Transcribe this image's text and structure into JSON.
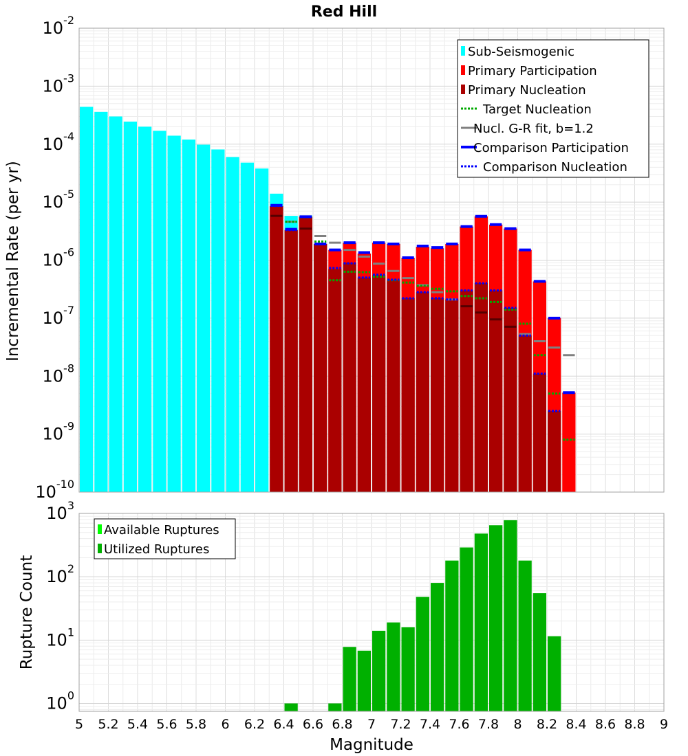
{
  "chart_data": [
    {
      "type": "bar",
      "title": "Red Hill",
      "ylabel": "Incremental Rate (per yr)",
      "xlabel": "",
      "xlim": [
        5,
        9
      ],
      "ylim": [
        1e-10,
        0.01
      ],
      "y_scale": "log",
      "bin_width": 0.1,
      "y_tick_exponents": [
        "-10",
        "-9",
        "-8",
        "-7",
        "-6",
        "-5",
        "-4",
        "-3",
        "-2"
      ],
      "legend_position": "top-right",
      "legend": [
        {
          "label": "Sub-Seismogenic",
          "color": "#00ffff",
          "style": "box"
        },
        {
          "label": "Primary Participation",
          "color": "#ff0000",
          "style": "box"
        },
        {
          "label": "Primary Nucleation",
          "color": "#aa0000",
          "style": "box"
        },
        {
          "label": "Target Nucleation",
          "color": "#00aa00",
          "style": "dotted"
        },
        {
          "label": "Nucl. G-R fit, b=1.2",
          "color": "#808080",
          "style": "solid"
        },
        {
          "label": "Comparison Participation",
          "color": "#0000ff",
          "style": "thick"
        },
        {
          "label": "Comparison Nucleation",
          "color": "#0000ff",
          "style": "dotted"
        }
      ],
      "series": [
        {
          "name": "Sub-Seismogenic",
          "x": [
            5.05,
            5.15,
            5.25,
            5.35,
            5.45,
            5.55,
            5.65,
            5.75,
            5.85,
            5.95,
            6.05,
            6.15,
            6.25,
            6.35,
            6.45,
            6.55
          ],
          "values": [
            0.00044,
            0.00036,
            0.0003,
            0.000245,
            0.0002,
            0.00017,
            0.00014,
            0.00012,
            9.8e-05,
            8.1e-05,
            6e-05,
            4.8e-05,
            3.8e-05,
            1.4e-05,
            5.8e-06,
            5.9e-06
          ]
        },
        {
          "name": "Primary Participation",
          "x": [
            6.35,
            6.45,
            6.55,
            6.65,
            6.75,
            6.85,
            6.95,
            7.05,
            7.15,
            7.25,
            7.35,
            7.45,
            7.55,
            7.65,
            7.75,
            7.85,
            7.95,
            8.05,
            8.15,
            8.25,
            8.35
          ],
          "values": [
            8.5e-06,
            3.3e-06,
            5.6e-06,
            1.9e-06,
            1.5e-06,
            2e-06,
            1.3e-06,
            2e-06,
            1.9e-06,
            1.1e-06,
            1.7e-06,
            1.6e-06,
            1.9e-06,
            3.8e-06,
            5.7e-06,
            4.1e-06,
            3.5e-06,
            1.5e-06,
            4.3e-07,
            1e-07,
            5.2e-09
          ]
        },
        {
          "name": "Primary Nucleation",
          "x": [
            6.35,
            6.45,
            6.55,
            6.65,
            6.75,
            6.85,
            6.95,
            7.05,
            7.15,
            7.25,
            7.35,
            7.45,
            7.55,
            7.65,
            7.75,
            7.85,
            7.95,
            8.05,
            8.15,
            8.25
          ],
          "values": [
            8.5e-06,
            3.3e-06,
            5.6e-06,
            1.9e-06,
            7e-07,
            9e-07,
            5e-07,
            5.5e-07,
            4.5e-07,
            2.2e-07,
            2.8e-07,
            2.2e-07,
            2.1e-07,
            3e-07,
            4e-07,
            3e-07,
            1.5e-07,
            5e-08,
            1.1e-08,
            2.5e-09
          ]
        },
        {
          "name": "Target Nucleation",
          "x": [
            6.45,
            6.55,
            6.65,
            6.75,
            6.85,
            6.95,
            7.05,
            7.15,
            7.25,
            7.35,
            7.45,
            7.55,
            7.65,
            7.75,
            7.85,
            7.95,
            8.05,
            8.15,
            8.25,
            8.35
          ],
          "values": [
            4.6e-06,
            5.5e-06,
            2.1e-06,
            4.5e-07,
            6.3e-07,
            6.2e-07,
            5.2e-07,
            4.5e-07,
            4.1e-07,
            3.6e-07,
            3.2e-07,
            2.9e-07,
            2.4e-07,
            2.2e-07,
            1.9e-07,
            1.4e-07,
            8e-08,
            2.3e-08,
            5e-09,
            8e-10
          ]
        },
        {
          "name": "Nucl. G-R fit, b=1.2",
          "x": [
            6.35,
            6.45,
            6.55,
            6.65,
            6.75,
            6.85,
            6.95,
            7.05,
            7.15,
            7.25,
            7.35,
            7.45,
            7.55,
            7.65,
            7.75,
            7.85,
            7.95,
            8.05,
            8.15,
            8.25,
            8.35
          ],
          "values": [
            5.8e-06,
            4.6e-06,
            3.5e-06,
            2.6e-06,
            2e-06,
            1.5e-06,
            1.15e-06,
            8.7e-07,
            6.5e-07,
            4.9e-07,
            3.7e-07,
            2.8e-07,
            2.1e-07,
            1.6e-07,
            1.25e-07,
            9.5e-08,
            7.1e-08,
            5.3e-08,
            4e-08,
            3.1e-08,
            2.3e-08
          ]
        },
        {
          "name": "Comparison Participation",
          "x": [
            6.35,
            6.45,
            6.55,
            6.65,
            6.75,
            6.85,
            6.95,
            7.05,
            7.15,
            7.25,
            7.35,
            7.45,
            7.55,
            7.65,
            7.75,
            7.85,
            7.95,
            8.05,
            8.15,
            8.25,
            8.35
          ],
          "values": [
            8.8e-06,
            3.4e-06,
            5.6e-06,
            1.9e-06,
            1.5e-06,
            2e-06,
            1.35e-06,
            2e-06,
            1.9e-06,
            1.1e-06,
            1.75e-06,
            1.65e-06,
            1.9e-06,
            3.8e-06,
            5.7e-06,
            4.1e-06,
            3.5e-06,
            1.5e-06,
            4.3e-07,
            1e-07,
            5.2e-09
          ]
        },
        {
          "name": "Comparison Nucleation",
          "x": [
            6.35,
            6.45,
            6.55,
            6.65,
            6.75,
            6.85,
            6.95,
            7.05,
            7.15,
            7.25,
            7.35,
            7.45,
            7.55,
            7.65,
            7.75,
            7.85,
            7.95,
            8.05,
            8.15,
            8.25
          ],
          "values": [
            8.6e-06,
            3.3e-06,
            5.6e-06,
            1.9e-06,
            7.3e-07,
            8.8e-07,
            5e-07,
            5.6e-07,
            4.6e-07,
            2.2e-07,
            2.8e-07,
            2.2e-07,
            2.1e-07,
            3e-07,
            4e-07,
            3e-07,
            1.5e-07,
            5e-08,
            1.1e-08,
            2.5e-09
          ]
        }
      ]
    },
    {
      "type": "bar",
      "title": "",
      "ylabel": "Rupture Count",
      "xlabel": "Magnitude",
      "xlim": [
        5,
        9
      ],
      "ylim": [
        0.75,
        1000
      ],
      "y_scale": "log",
      "bin_width": 0.1,
      "y_tick_exponents": [
        "0",
        "1",
        "2",
        "3"
      ],
      "x_tick_labels": [
        "5",
        "5.2",
        "5.4",
        "5.6",
        "5.8",
        "6",
        "6.2",
        "6.4",
        "6.6",
        "6.8",
        "7",
        "7.2",
        "7.4",
        "7.6",
        "7.8",
        "8",
        "8.2",
        "8.4",
        "8.6",
        "8.8",
        "9"
      ],
      "legend_position": "top-left",
      "legend": [
        {
          "label": "Available Ruptures",
          "color": "#00ff00",
          "style": "box"
        },
        {
          "label": "Utilized Ruptures",
          "color": "#00b000",
          "style": "box"
        }
      ],
      "series": [
        {
          "name": "Utilized Ruptures",
          "x": [
            6.45,
            6.75,
            6.85,
            6.95,
            7.05,
            7.15,
            7.25,
            7.35,
            7.45,
            7.55,
            7.65,
            7.75,
            7.85,
            7.95,
            8.05,
            8.15,
            8.25
          ],
          "values": [
            1,
            1,
            7.8,
            6.8,
            14,
            19,
            16,
            48,
            80,
            180,
            290,
            480,
            650,
            780,
            180,
            55,
            11.5
          ]
        }
      ]
    }
  ]
}
